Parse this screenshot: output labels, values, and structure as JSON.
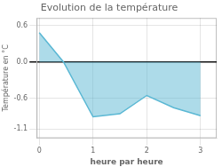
{
  "chart_data": {
    "type": "area",
    "title": "Evolution de la température",
    "xlabel": "heure par heure",
    "ylabel": "Température en °C",
    "x": [
      0,
      0.45,
      1.0,
      1.5,
      2.0,
      2.5,
      3.0
    ],
    "values": [
      0.48,
      0.0,
      -0.9,
      -0.85,
      -0.55,
      -0.75,
      -0.88
    ],
    "color": "#5bb8d4",
    "xlim": [
      -0.05,
      3.3
    ],
    "ylim": [
      -1.25,
      0.72
    ],
    "xticks": [
      0,
      1,
      2,
      3
    ],
    "yticks": [
      0.6,
      {
        "value": 0,
        "label": "0.0"
      },
      -0.6,
      -1.1
    ],
    "grid": true
  }
}
